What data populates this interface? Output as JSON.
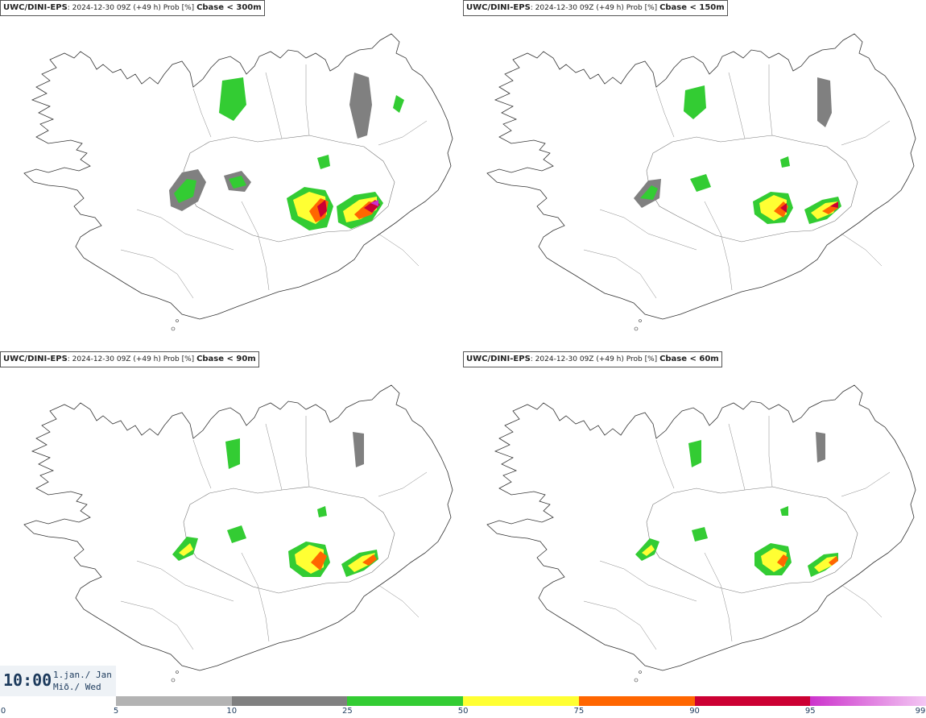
{
  "panels": [
    {
      "model": "UWC/DINI-EPS",
      "run": "2024-12-30 09Z (+49 h) Prob [%]",
      "threshold": "Cbase < 300m"
    },
    {
      "model": "UWC/DINI-EPS",
      "run": "2024-12-30 09Z (+49 h) Prob [%]",
      "threshold": "Cbase < 150m"
    },
    {
      "model": "UWC/DINI-EPS",
      "run": "2024-12-30 09Z (+49 h) Prob [%]",
      "threshold": "Cbase < 90m"
    },
    {
      "model": "UWC/DINI-EPS",
      "run": "2024-12-30 09Z (+49 h) Prob [%]",
      "threshold": "Cbase < 60m"
    }
  ],
  "valid": {
    "time": "10:00",
    "date_line1": "1.jan./ Jan",
    "date_line2": "Mið./ Wed"
  },
  "legend": {
    "ticks": [
      "0",
      "5",
      "10",
      "25",
      "50",
      "75",
      "90",
      "95",
      "99"
    ],
    "colors": [
      "#b3b3b3",
      "#808080",
      "#33cc33",
      "#ffff33",
      "#ff6600",
      "#cc0033",
      "#cc33cc"
    ]
  }
}
